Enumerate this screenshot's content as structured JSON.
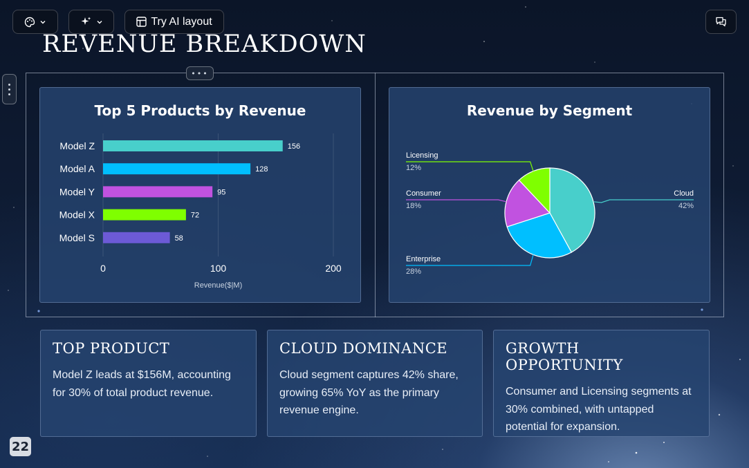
{
  "toolbar": {
    "theme_button_icon": "palette-icon",
    "ai_button_icon": "sparkles-icon",
    "try_ai_layout_label": "Try AI layout",
    "comments_icon": "comments-icon"
  },
  "slide": {
    "title": "REVENUE BREAKDOWN",
    "page_number": "22"
  },
  "charts": {
    "bar_title": "Top 5 Products by Revenue",
    "pie_title": "Revenue by Segment"
  },
  "chart_data": [
    {
      "type": "bar",
      "orientation": "horizontal",
      "title": "Top 5 Products by Revenue",
      "categories": [
        "Model Z",
        "Model A",
        "Model Y",
        "Model X",
        "Model S"
      ],
      "values": [
        156,
        128,
        95,
        72,
        58
      ],
      "colors": [
        "#48cfcb",
        "#00bfff",
        "#c152e0",
        "#7fff00",
        "#6c5ad6"
      ],
      "xlabel": "Revenue($|M)",
      "ylabel": "",
      "xlim": [
        0,
        200
      ],
      "xticks": [
        0,
        100,
        200
      ],
      "data_labels": true,
      "grid": true
    },
    {
      "type": "pie",
      "title": "Revenue by Segment",
      "slices": [
        {
          "label": "Cloud",
          "value": 42,
          "pct_label": "42%",
          "color": "#48cfcb"
        },
        {
          "label": "Enterprise",
          "value": 28,
          "pct_label": "28%",
          "color": "#00bfff"
        },
        {
          "label": "Consumer",
          "value": 18,
          "pct_label": "18%",
          "color": "#c152e0"
        },
        {
          "label": "Licensing",
          "value": 12,
          "pct_label": "12%",
          "color": "#7fff00"
        }
      ],
      "start_angle_deg": 0,
      "direction": "clockwise",
      "labels_outside": true
    }
  ],
  "insights": [
    {
      "title": "TOP PRODUCT",
      "body": "Model Z leads at $156M, accounting for 30% of total product revenue."
    },
    {
      "title": "CLOUD DOMINANCE",
      "body": "Cloud segment captures 42% share, growing 65% YoY as the primary revenue engine."
    },
    {
      "title": "GROWTH OPPORTUNITY",
      "body": "Consumer and Licensing segments at 30% combined, with untapped potential for expansion."
    }
  ]
}
